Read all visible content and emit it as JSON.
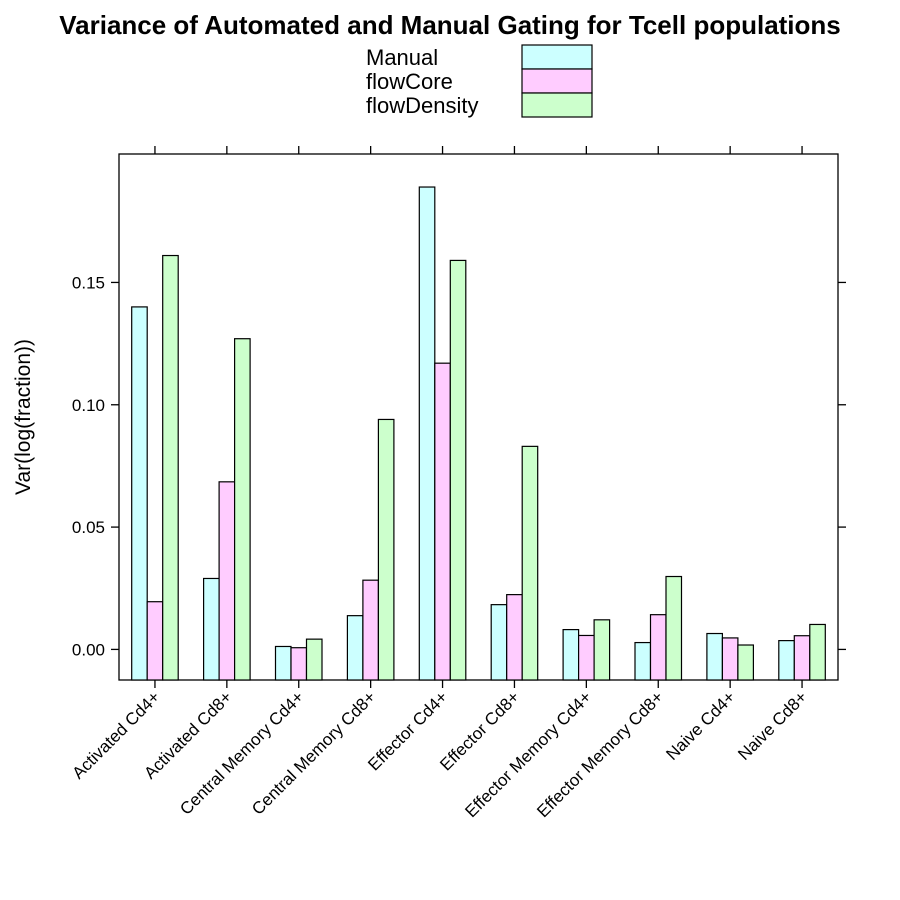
{
  "chart_data": {
    "type": "bar",
    "title": "Variance of Automated and Manual Gating for Tcell populations",
    "xlabel": "",
    "ylabel": "Var(log(fraction))",
    "categories": [
      "Activated Cd4+",
      "Activated Cd8+",
      "Central Memory Cd4+",
      "Central Memory Cd8+",
      "Effector Cd4+",
      "Effector Cd8+",
      "Effector Memory Cd4+",
      "Effector Memory Cd8+",
      "Naive Cd4+",
      "Naive Cd8+"
    ],
    "series": [
      {
        "name": "Manual",
        "color": "#ccffff",
        "values": [
          0.14,
          0.029,
          0.0012,
          0.0138,
          0.189,
          0.0183,
          0.0081,
          0.0028,
          0.0065,
          0.0036
        ]
      },
      {
        "name": "flowCore",
        "color": "#ffccff",
        "values": [
          0.0195,
          0.0685,
          0.0007,
          0.0283,
          0.117,
          0.0224,
          0.0057,
          0.0142,
          0.0047,
          0.0056
        ]
      },
      {
        "name": "flowDensity",
        "color": "#ccffcc",
        "values": [
          0.161,
          0.127,
          0.0042,
          0.094,
          0.159,
          0.083,
          0.0121,
          0.0298,
          0.0018,
          0.0102
        ]
      }
    ],
    "yticks": [
      0.0,
      0.05,
      0.1,
      0.15
    ],
    "ytick_labels": [
      "0.00",
      "0.05",
      "0.10",
      "0.15"
    ],
    "ylim": [
      -0.0125,
      0.2025
    ],
    "legend_position": "top-center",
    "grid": false
  }
}
